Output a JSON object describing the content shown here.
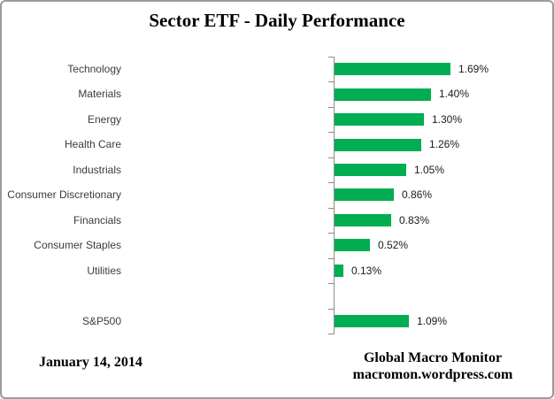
{
  "title": "Sector ETF - Daily Performance",
  "footer": {
    "date": "January 14, 2014",
    "source_line1": "Global Macro Monitor",
    "source_line2": "macromon.wordpress.com"
  },
  "colors": {
    "bar": "#00AD50",
    "axis": "#8C8C8C",
    "category_label": "#3B3B3B",
    "value_label": "#1A1A1A",
    "border": "#9B9B9B"
  },
  "chart_data": {
    "type": "bar",
    "orientation": "horizontal",
    "title": "Sector ETF - Daily Performance",
    "xlabel": "",
    "ylabel": "",
    "xlim": [
      0,
      1.8
    ],
    "grid": false,
    "legend": "none",
    "unit": "%",
    "categories": [
      "Technology",
      "Materials",
      "Energy",
      "Health Care",
      "Industrials",
      "Consumer Discretionary",
      "Financials",
      "Consumer Staples",
      "Utilities",
      "",
      "S&P500"
    ],
    "values": [
      1.69,
      1.4,
      1.3,
      1.26,
      1.05,
      0.86,
      0.83,
      0.52,
      0.13,
      null,
      1.09
    ],
    "value_labels": [
      "1.69%",
      "1.40%",
      "1.30%",
      "1.26%",
      "1.05%",
      "0.86%",
      "0.83%",
      "0.52%",
      "0.13%",
      "",
      "1.09%"
    ]
  }
}
